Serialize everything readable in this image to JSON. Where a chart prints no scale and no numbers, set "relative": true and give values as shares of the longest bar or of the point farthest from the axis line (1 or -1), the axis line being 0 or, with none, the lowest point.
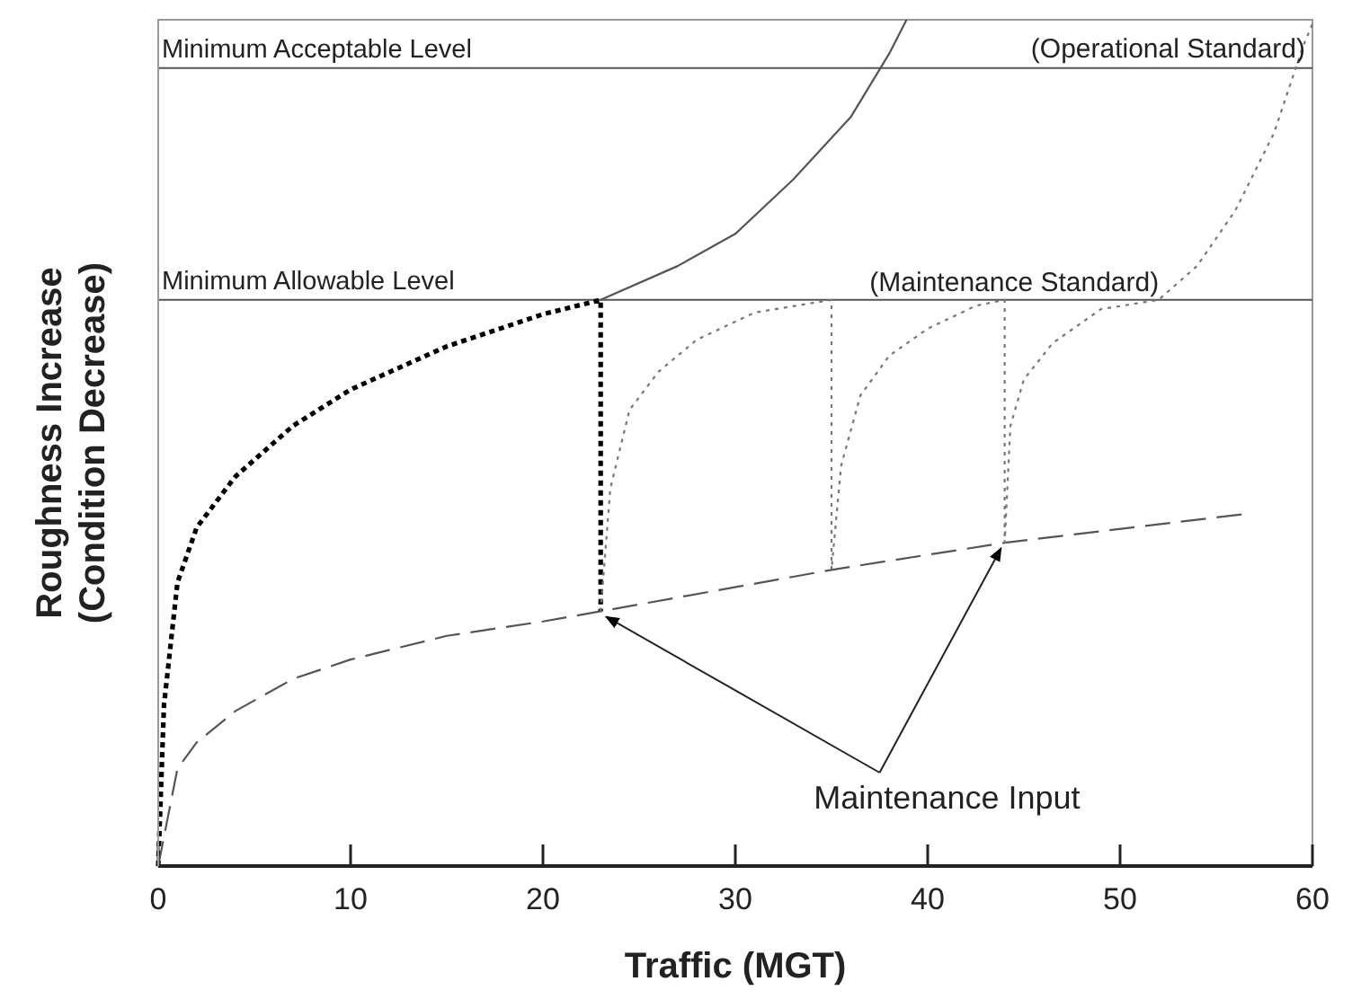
{
  "chart_data": {
    "type": "line",
    "relative": true,
    "xlabel": "Traffic (MGT)",
    "ylabel": "Roughness Increase\n(Condition Decrease)",
    "xlim": [
      0,
      60
    ],
    "xticks": [
      0,
      10,
      20,
      30,
      40,
      50,
      60
    ],
    "grid": false,
    "series": [
      {
        "color": "#000000",
        "line_style": "dotted",
        "x": [
          0,
          0.3,
          1,
          2,
          4,
          7,
          10,
          15,
          20,
          23,
          23
        ],
        "values": [
          0,
          0.19,
          0.335,
          0.4,
          0.46,
          0.52,
          0.563,
          0.614,
          0.652,
          0.669,
          0.301
        ]
      },
      {
        "color": "#555555",
        "line_style": "solid",
        "x": [
          23,
          27,
          30,
          33,
          36,
          38,
          38.9
        ],
        "values": [
          0.669,
          0.709,
          0.747,
          0.811,
          0.885,
          0.96,
          1
        ]
      },
      {
        "color": "#555555",
        "line_style": "dashed",
        "x": [
          0,
          1,
          2,
          4,
          7,
          10,
          15,
          20,
          23,
          35,
          44,
          56.5
        ],
        "values": [
          0,
          0.115,
          0.146,
          0.183,
          0.221,
          0.244,
          0.272,
          0.289,
          0.301,
          0.35,
          0.382,
          0.416
        ]
      },
      {
        "color": "#777777",
        "line_style": "dotted",
        "x": [
          23,
          23.5,
          24.5,
          26,
          28,
          31,
          35,
          35,
          35.5,
          36.5,
          38,
          40,
          42.5,
          44,
          44,
          44.3,
          45,
          46.5,
          49,
          52,
          54,
          56,
          58,
          59.5,
          60
        ],
        "values": [
          0.301,
          0.446,
          0.539,
          0.584,
          0.622,
          0.654,
          0.669,
          0.35,
          0.473,
          0.556,
          0.603,
          0.635,
          0.662,
          0.669,
          0.382,
          0.52,
          0.575,
          0.618,
          0.658,
          0.669,
          0.709,
          0.775,
          0.866,
          0.968,
          0.995
        ]
      }
    ],
    "ref_lines": [
      {
        "axis": "y",
        "value": 0.943,
        "label": "Minimum Acceptable Level",
        "color": "#555555"
      },
      {
        "axis": "y",
        "value": 0.669,
        "label": "Minimum Allowable Level",
        "color": "#555555"
      }
    ],
    "annotations": [
      "(Operational Standard)",
      "(Maintenance Standard)",
      {
        "text": "Maintenance Input",
        "x": 23,
        "y": 0.301
      }
    ]
  }
}
